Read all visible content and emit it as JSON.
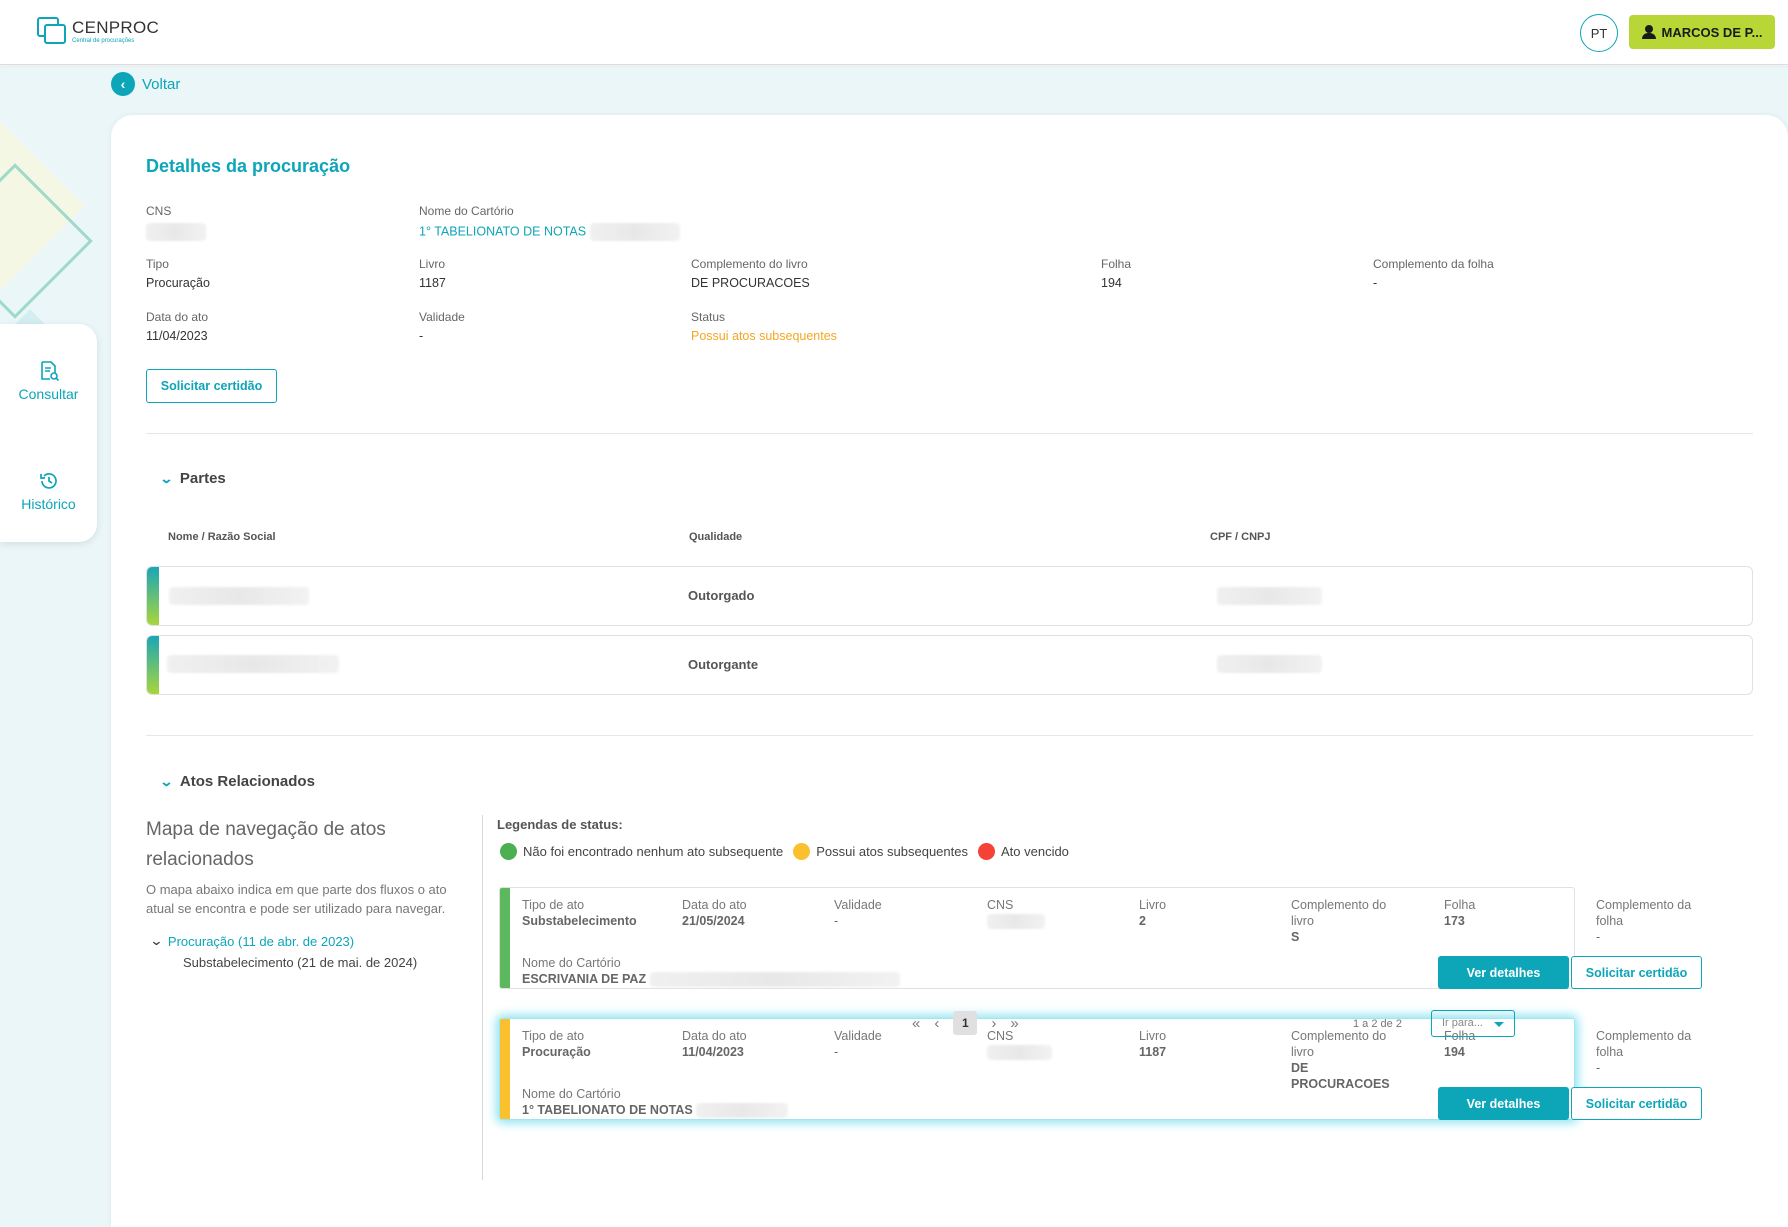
{
  "header": {
    "logo_title": "CENPROC",
    "logo_subtitle": "Central de procurações",
    "lang": "PT",
    "user": "MARCOS DE P..."
  },
  "nav": {
    "consultar": "Consultar",
    "historico": "Histórico"
  },
  "back_label": "Voltar",
  "details": {
    "title": "Detalhes da procuração",
    "cns_label": "CNS",
    "cartorio_label": "Nome do Cartório",
    "cartorio_value": "1° TABELIONATO DE NOTAS",
    "tipo_label": "Tipo",
    "tipo_value": "Procuração",
    "livro_label": "Livro",
    "livro_value": "1187",
    "complemento_livro_label": "Complemento do livro",
    "complemento_livro_value": "DE PROCURACOES",
    "folha_label": "Folha",
    "folha_value": "194",
    "complemento_folha_label": "Complemento da folha",
    "complemento_folha_value": "-",
    "data_ato_label": "Data do ato",
    "data_ato_value": "11/04/2023",
    "validade_label": "Validade",
    "validade_value": "-",
    "status_label": "Status",
    "status_value": "Possui atos subsequentes",
    "solicitar_btn": "Solicitar certidão"
  },
  "partes": {
    "section_title": "Partes",
    "col_nome": "Nome / Razão Social",
    "col_qualidade": "Qualidade",
    "col_cpf": "CPF / CNPJ",
    "rows": [
      {
        "qualidade": "Outorgado"
      },
      {
        "qualidade": "Outorgante"
      }
    ]
  },
  "atos": {
    "section_title": "Atos Relacionados",
    "map_title": "Mapa de navegação de atos relacionados",
    "map_desc": "O mapa abaixo indica em que parte dos fluxos o ato atual se encontra e pode ser utilizado para navegar.",
    "tree_root": "Procuração (11 de abr. de 2023)",
    "tree_child": "Substabelecimento (21 de mai. de 2024)",
    "legend_title": "Legendas de status:",
    "legend": [
      {
        "label": "Não foi encontrado nenhum ato subsequente",
        "color": "#4caf50"
      },
      {
        "label": "Possui atos subsequentes",
        "color": "#fbc02d"
      },
      {
        "label": "Ato vencido",
        "color": "#f44336"
      }
    ],
    "labels": {
      "tipo": "Tipo de ato",
      "data": "Data do ato",
      "validade": "Validade",
      "cns": "CNS",
      "livro": "Livro",
      "compl_livro": "Complemento do livro",
      "folha": "Folha",
      "compl_folha": "Complemento da folha",
      "cartorio": "Nome do Cartório"
    },
    "cards": [
      {
        "status_color": "#5cb85c",
        "tipo": "Substabelecimento",
        "data": "21/05/2024",
        "validade": "-",
        "livro": "2",
        "compl_livro": "S",
        "folha": "173",
        "compl_folha": "-",
        "cartorio": "ESCRIVANIA DE PAZ",
        "btn_detalhes": "Ver detalhes",
        "btn_certidao": "Solicitar certidão"
      },
      {
        "status_color": "#fbc02d",
        "tipo": "Procuração",
        "data": "11/04/2023",
        "validade": "-",
        "livro": "1187",
        "compl_livro": "DE PROCURACOES",
        "folha": "194",
        "compl_folha": "-",
        "cartorio": "1° TABELIONATO DE NOTAS",
        "btn_detalhes": "Ver detalhes",
        "btn_certidao": "Solicitar certidão"
      }
    ],
    "pagination": {
      "current_page": "1",
      "count": "1 a 2 de 2",
      "goto_placeholder": "Ir para..."
    }
  }
}
